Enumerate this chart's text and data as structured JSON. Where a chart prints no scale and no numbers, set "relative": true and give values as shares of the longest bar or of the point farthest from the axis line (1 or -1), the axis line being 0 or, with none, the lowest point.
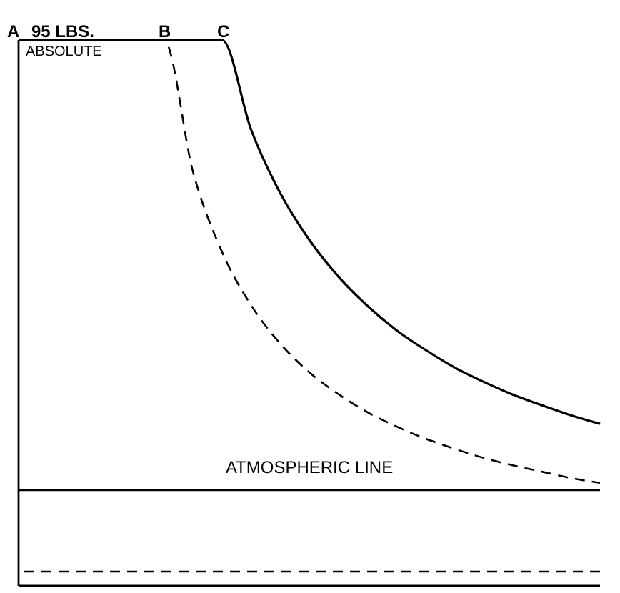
{
  "chart_data": {
    "type": "line",
    "relative": true,
    "categories": [
      null,
      null,
      null,
      null,
      null,
      null,
      null,
      null,
      null,
      null,
      null,
      null,
      null,
      null,
      null,
      null,
      null,
      null,
      null,
      null,
      null
    ],
    "series": [
      {
        "color": "#000000",
        "line_style": "solid",
        "values": [
          1,
          1,
          1,
          1,
          1,
          1,
          1,
          1,
          0.831,
          0.712,
          0.624,
          0.555,
          0.5,
          0.454,
          0.417,
          0.384,
          0.357,
          0.333,
          0.313,
          0.294,
          0.278
        ]
      },
      {
        "color": "#000000",
        "line_style": "dashed",
        "values": [
          1,
          1,
          1,
          1,
          1,
          1,
          0.752,
          0.601,
          0.501,
          0.429,
          0.375,
          0.334,
          0.3,
          0.273,
          0.25,
          0.231,
          0.214,
          0.2,
          0.188,
          0.176,
          0.167
        ]
      }
    ],
    "ref_lines": [
      {
        "axis": "y",
        "value": 0.153,
        "label": "ATMOSPHERIC LINE",
        "color": "#000000",
        "line_style": "solid"
      },
      {
        "axis": "y",
        "value": 0,
        "color": "#000000",
        "line_style": "dashed"
      }
    ],
    "annotations": [
      "A",
      "95 LBS.",
      "B",
      "C",
      "ABSOLUTE"
    ]
  }
}
